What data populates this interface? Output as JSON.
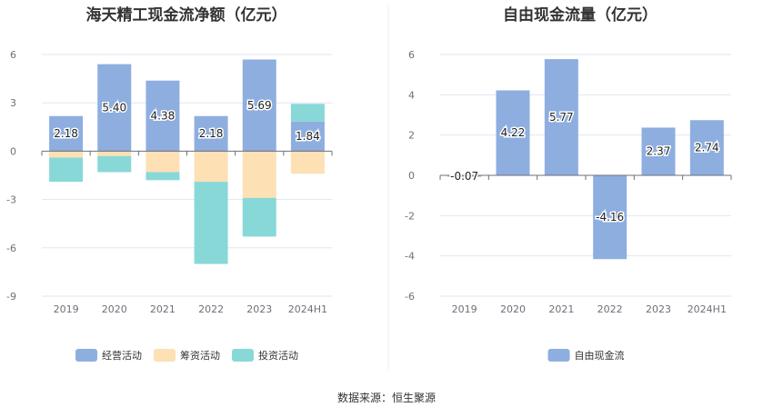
{
  "chart_data": [
    {
      "type": "bar",
      "stacked": true,
      "title": "海天精工现金流净额（亿元）",
      "categories": [
        "2019",
        "2020",
        "2021",
        "2022",
        "2023",
        "2024H1"
      ],
      "ylim": [
        -9,
        6
      ],
      "yticks": [
        6,
        3,
        0,
        -3,
        -6,
        -9
      ],
      "grid": true,
      "legend_position": "bottom",
      "series": [
        {
          "name": "经营活动",
          "color": "#8eaee0",
          "values": [
            2.18,
            5.4,
            4.38,
            2.18,
            5.69,
            1.84
          ],
          "labels": [
            "2.18",
            "5.40",
            "4.38",
            "2.18",
            "5.69",
            "1.84"
          ]
        },
        {
          "name": "筹资活动",
          "color": "#fde0b4",
          "values": [
            -0.4,
            -0.3,
            -1.3,
            -1.9,
            -2.9,
            -1.4
          ]
        },
        {
          "name": "投资活动",
          "color": "#88d8d8",
          "values": [
            -1.5,
            -1.0,
            -0.5,
            -5.1,
            -2.4,
            1.1
          ]
        }
      ]
    },
    {
      "type": "bar",
      "title": "自由现金流量（亿元）",
      "categories": [
        "2019",
        "2020",
        "2021",
        "2022",
        "2023",
        "2024H1"
      ],
      "ylim": [
        -6,
        6
      ],
      "yticks": [
        6,
        4,
        2,
        0,
        -2,
        -4,
        -6
      ],
      "grid": true,
      "legend_position": "bottom",
      "series": [
        {
          "name": "自由现金流",
          "color": "#8eaee0",
          "values": [
            -0.07,
            4.22,
            5.77,
            -4.16,
            2.37,
            2.74
          ],
          "labels": [
            "-0.07",
            "4.22",
            "5.77",
            "-4.16",
            "2.37",
            "2.74"
          ]
        }
      ]
    }
  ],
  "footer": "数据来源：恒生聚源"
}
